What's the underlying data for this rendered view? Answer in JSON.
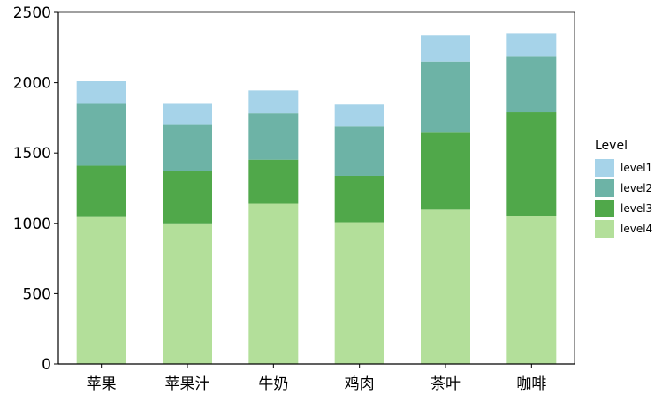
{
  "chart_data": {
    "type": "bar",
    "stacked": true,
    "categories": [
      "苹果",
      "苹果汁",
      "牛奶",
      "鸡肉",
      "茶叶",
      "咖啡"
    ],
    "series": [
      {
        "name": "level4",
        "color": "#b3df9a",
        "values": [
          1045,
          1000,
          1140,
          1008,
          1097,
          1050
        ]
      },
      {
        "name": "level3",
        "color": "#50a84a",
        "values": [
          365,
          370,
          313,
          330,
          553,
          740
        ]
      },
      {
        "name": "level2",
        "color": "#6db3a6",
        "values": [
          440,
          335,
          330,
          350,
          500,
          400
        ]
      },
      {
        "name": "level1",
        "color": "#a6d3e9",
        "values": [
          160,
          145,
          162,
          157,
          185,
          163
        ]
      }
    ],
    "legend": {
      "title": "Level",
      "placement": "right",
      "order": [
        "level1",
        "level2",
        "level3",
        "level4"
      ]
    },
    "ylim": [
      0,
      2500
    ],
    "yticks": [
      0,
      500,
      1000,
      1500,
      2000,
      2500
    ],
    "xlabel": "",
    "ylabel": "",
    "grid": false
  }
}
